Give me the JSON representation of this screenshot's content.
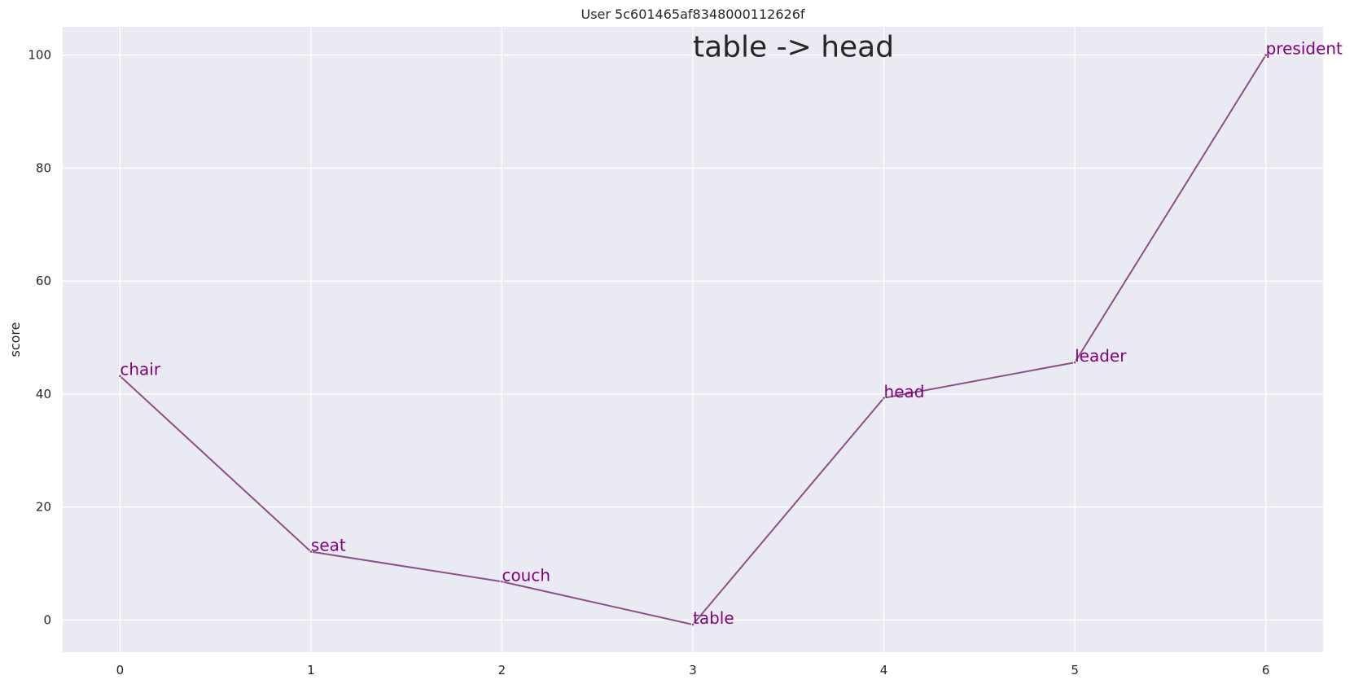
{
  "chart_data": {
    "type": "line",
    "title": "User 5c601465af8348000112626f",
    "annotation": "table -> head",
    "xlabel": "",
    "ylabel": "score",
    "x": [
      0,
      1,
      2,
      3,
      4,
      5,
      6
    ],
    "xticks": [
      "0",
      "1",
      "2",
      "3",
      "4",
      "5",
      "6"
    ],
    "yticks": [
      "0",
      "20",
      "40",
      "60",
      "80",
      "100"
    ],
    "xlim": [
      -0.3,
      6.3
    ],
    "ylim": [
      -5.7,
      105
    ],
    "series": [
      {
        "values": [
          43.2,
          12.1,
          6.8,
          -0.8,
          39.3,
          45.6,
          100
        ],
        "labels": [
          "chair",
          "seat",
          "couch",
          "table",
          "head",
          "leader",
          "president"
        ]
      }
    ],
    "grid": true,
    "colors": {
      "plot_background": "#eaeaf2",
      "grid": "#ffffff",
      "line": "#8e4f86",
      "point_label": "#800080"
    }
  }
}
